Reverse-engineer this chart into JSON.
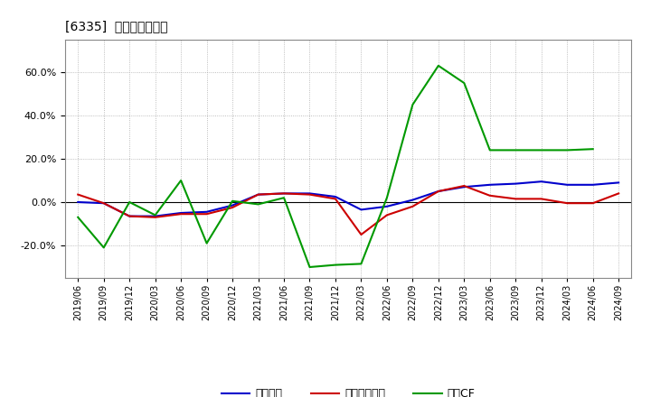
{
  "title": "[6335]  マージンの推移",
  "x_labels": [
    "2019/06",
    "2019/09",
    "2019/12",
    "2020/03",
    "2020/06",
    "2020/09",
    "2020/12",
    "2021/03",
    "2021/06",
    "2021/09",
    "2021/12",
    "2022/03",
    "2022/06",
    "2022/09",
    "2022/12",
    "2023/03",
    "2023/06",
    "2023/09",
    "2023/12",
    "2024/03",
    "2024/06",
    "2024/09"
  ],
  "keijo": [
    0.0,
    -0.5,
    -6.5,
    -6.5,
    -5.0,
    -4.5,
    -1.5,
    3.5,
    4.0,
    4.0,
    2.5,
    -3.5,
    -2.0,
    1.0,
    5.0,
    7.0,
    8.0,
    8.5,
    9.5,
    8.0,
    8.0,
    9.0
  ],
  "touki": [
    3.5,
    -0.5,
    -6.5,
    -7.0,
    -5.5,
    -5.5,
    -2.5,
    3.5,
    4.0,
    3.5,
    1.5,
    -15.0,
    -6.0,
    -2.0,
    5.0,
    7.5,
    3.0,
    1.5,
    1.5,
    -0.5,
    -0.5,
    4.0
  ],
  "eigyo_cf": [
    -7.0,
    -21.0,
    0.0,
    -6.0,
    10.0,
    -19.0,
    0.5,
    -1.0,
    2.0,
    -30.0,
    -29.0,
    -28.5,
    2.0,
    45.0,
    63.0,
    55.0,
    24.0,
    24.0,
    24.0,
    24.0,
    24.5,
    null
  ],
  "keijo_color": "#0000cc",
  "touki_color": "#cc0000",
  "eigyo_cf_color": "#009900",
  "ylim": [
    -35,
    75
  ],
  "yticks": [
    -20.0,
    0.0,
    20.0,
    40.0,
    60.0
  ],
  "background_color": "#ffffff",
  "grid_color": "#aaaaaa",
  "legend_labels": [
    "経常利益",
    "当期経常利益",
    "営業CF"
  ]
}
